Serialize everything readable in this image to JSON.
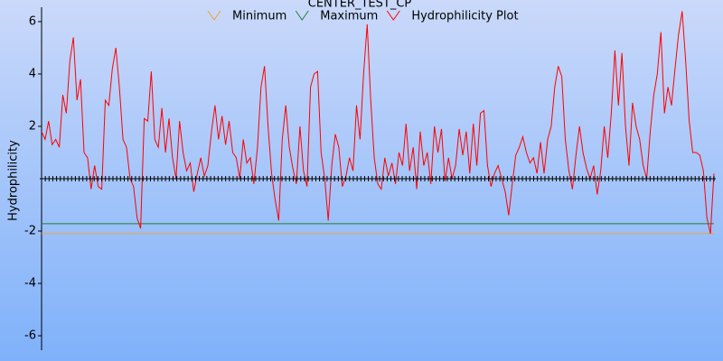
{
  "chart_data": {
    "type": "line",
    "title": "CENTER_TEST_CP",
    "y_label": "Hydrophilicity",
    "ylim": [
      -6.55,
      6.55
    ],
    "yticks": [
      -6,
      -4,
      -2,
      2,
      4,
      6
    ],
    "series": [
      {
        "name": "Minimum",
        "color": "#f0a030",
        "values": [
          -2.1,
          -2.1
        ]
      },
      {
        "name": "Maximum",
        "color": "#208030",
        "values": [
          -1.72,
          -1.72
        ]
      },
      {
        "name": "Hydrophilicity Plot",
        "color": "#ff0000",
        "values": [
          1.8,
          1.5,
          2.2,
          1.3,
          1.5,
          1.2,
          3.2,
          2.5,
          4.5,
          5.4,
          3.0,
          3.8,
          1.0,
          0.8,
          -0.4,
          0.5,
          -0.3,
          -0.4,
          3.0,
          2.8,
          4.2,
          5.0,
          3.5,
          1.5,
          1.2,
          0,
          -0.3,
          -1.5,
          -1.9,
          2.3,
          2.2,
          4.1,
          1.5,
          1.2,
          2.7,
          1.0,
          2.3,
          0.8,
          0,
          2.2,
          1.0,
          0.3,
          0.6,
          -0.5,
          0.2,
          0.8,
          0.1,
          0.5,
          1.8,
          2.8,
          1.5,
          2.4,
          1.3,
          2.2,
          1.0,
          0.8,
          0,
          1.5,
          0.6,
          0.8,
          -0.2,
          1.2,
          3.5,
          4.3,
          2.0,
          0.2,
          -0.8,
          -1.6,
          1.5,
          2.8,
          1.2,
          0.4,
          -0.2,
          2.0,
          0.3,
          -0.3,
          3.5,
          4.0,
          4.1,
          1.0,
          0,
          -1.6,
          0.5,
          1.7,
          1.2,
          -0.3,
          0.1,
          0.8,
          0.3,
          2.8,
          1.5,
          4.0,
          5.9,
          3.0,
          0.8,
          -0.2,
          -0.4,
          0.8,
          0.1,
          0.6,
          -0.2,
          1.0,
          0.5,
          2.1,
          0.3,
          1.2,
          -0.4,
          1.8,
          0.5,
          1.0,
          -0.2,
          2.0,
          1.0,
          1.9,
          -0.1,
          0.8,
          0,
          0.5,
          1.9,
          0.9,
          1.8,
          0.2,
          2.1,
          0.5,
          2.5,
          2.6,
          0.5,
          -0.3,
          0.2,
          0.5,
          0,
          -0.5,
          -1.4,
          -0.2,
          0.9,
          1.2,
          1.6,
          1.0,
          0.6,
          0.8,
          0.2,
          1.4,
          0.2,
          1.5,
          2.0,
          3.5,
          4.3,
          3.9,
          1.5,
          0.3,
          -0.4,
          0.9,
          2.0,
          1.0,
          0.4,
          0,
          0.5,
          -0.6,
          0.3,
          2.0,
          0.8,
          2.5,
          4.9,
          2.8,
          4.8,
          2.0,
          0.5,
          2.9,
          2.0,
          1.5,
          0.5,
          0,
          1.8,
          3.2,
          4.0,
          5.6,
          2.5,
          3.5,
          2.8,
          4.2,
          5.5,
          6.4,
          4.5,
          2.2,
          1.0,
          1.0,
          0.9,
          0.3,
          -1.5,
          -2.1,
          0.2
        ]
      },
      {
        "color": "#000000",
        "values": [
          0,
          0,
          0,
          0,
          0,
          0,
          0,
          0,
          0,
          0,
          0,
          0,
          0,
          0,
          0,
          0,
          0,
          0,
          0,
          0,
          0,
          0,
          0,
          0,
          0,
          0,
          0,
          0,
          0,
          0,
          0,
          0,
          0,
          0,
          0,
          0,
          0,
          0,
          0,
          0,
          0,
          0,
          0,
          0,
          0,
          0,
          0,
          0,
          0,
          0,
          0,
          0,
          0,
          0,
          0,
          0,
          0,
          0,
          0,
          0,
          0,
          0,
          0,
          0,
          0,
          0,
          0,
          0,
          0,
          0,
          0,
          0,
          0,
          0,
          0,
          0,
          0,
          0,
          0,
          0,
          0,
          0,
          0,
          0,
          0,
          0,
          0,
          0,
          0,
          0,
          0,
          0,
          0,
          0,
          0,
          0,
          0,
          0,
          0,
          0,
          0,
          0,
          0,
          0,
          0,
          0,
          0,
          0,
          0,
          0,
          0,
          0,
          0,
          0,
          0,
          0,
          0,
          0,
          0,
          0,
          0,
          0,
          0,
          0,
          0,
          0,
          0,
          0,
          0,
          0,
          0,
          0,
          0,
          0,
          0,
          0,
          0,
          0,
          0,
          0,
          0,
          0,
          0,
          0,
          0,
          0,
          0,
          0,
          0,
          0,
          0,
          0,
          0,
          0,
          0,
          0,
          0,
          0,
          0,
          0,
          0,
          0,
          0,
          0,
          0,
          0,
          0,
          0,
          0,
          0,
          0,
          0,
          0,
          0,
          0,
          0,
          0,
          0,
          0,
          0
        ]
      }
    ]
  }
}
